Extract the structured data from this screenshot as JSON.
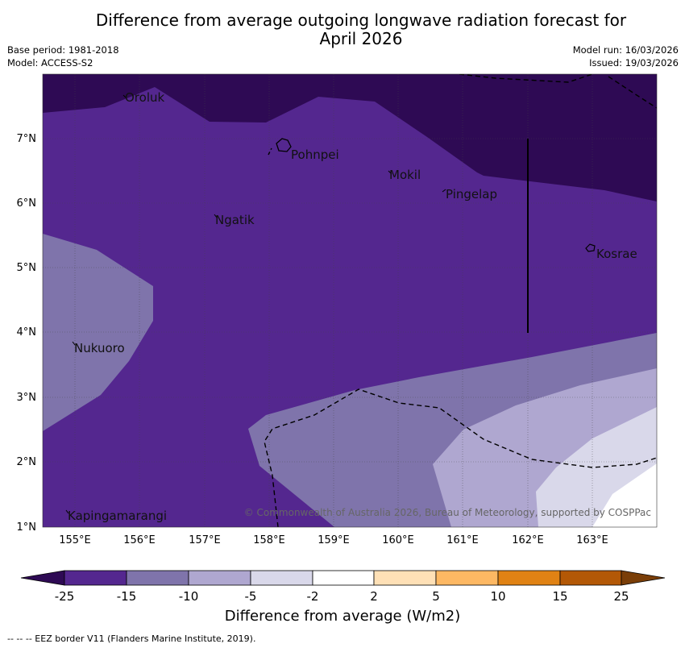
{
  "title_line1": "Difference from average outgoing longwave radiation forecast for",
  "title_line2": "April 2026",
  "base_period": "Base period: 1981-2018",
  "model": "Model: ACCESS-S2",
  "model_run": "Model run: 16/03/2026",
  "issued": "Issued: 19/03/2026",
  "lat_labels": [
    "1°N",
    "2°N",
    "3°N",
    "4°N",
    "5°N",
    "6°N",
    "7°N"
  ],
  "lon_labels": [
    "155°E",
    "156°E",
    "157°E",
    "158°E",
    "159°E",
    "160°E",
    "161°E",
    "162°E",
    "163°E"
  ],
  "places": [
    "Oroluk",
    "Pohnpei",
    "Mokil",
    "Pingelap",
    "Ngatik",
    "Kosrae",
    "Nukuoro",
    "Kapingamarangi"
  ],
  "copyright": "© Commonwealth of Australia 2026, Bureau of Meteorology, supported by COSPPac",
  "colorbar": {
    "title": "Difference from average (W/m2)",
    "ticks": [
      "-25",
      "-15",
      "-10",
      "-5",
      "-2",
      "2",
      "5",
      "10",
      "15",
      "25"
    ],
    "colors": [
      "#2e0a54",
      "#54278f",
      "#7f74ab",
      "#afa7d0",
      "#d9d8ea",
      "#ffffff",
      "#fee0b6",
      "#fdb863",
      "#e08214",
      "#b35806",
      "#7a3e08"
    ]
  },
  "footnote": "--  --  -- EEZ border V11 (Flanders Marine Institute, 2019)."
}
